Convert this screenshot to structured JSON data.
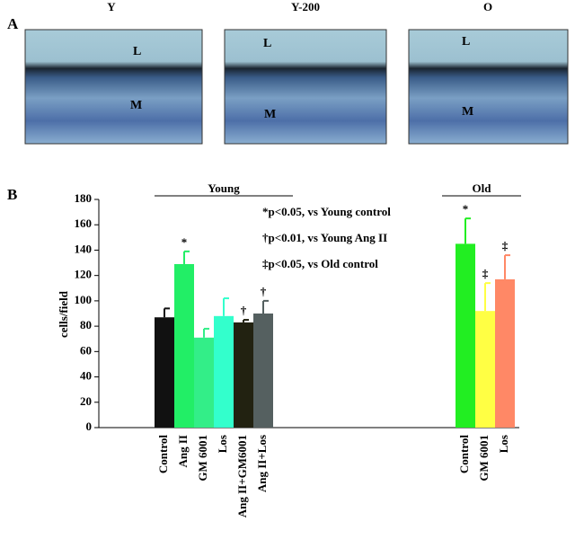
{
  "panel_a": {
    "label": "A",
    "images": [
      {
        "title": "Y",
        "lumen": "L",
        "media": "M"
      },
      {
        "title": "Y-200",
        "lumen": "L",
        "media": "M"
      },
      {
        "title": "O",
        "lumen": "L",
        "media": "M"
      }
    ]
  },
  "chart_data": {
    "type": "bar",
    "panel_label": "B",
    "y_label": "cells/field",
    "ylim": [
      0,
      180
    ],
    "yticks": [
      0,
      20,
      40,
      60,
      80,
      100,
      120,
      140,
      160,
      180
    ],
    "annotations": [
      "*p<0.05, vs Young control",
      "†p<0.01, vs Young Ang II",
      "‡p<0.05, vs Old control"
    ],
    "groups": [
      {
        "name": "Young",
        "bars": [
          {
            "category": "Control",
            "value": 87,
            "error": 7,
            "color": "#111111",
            "marker": null
          },
          {
            "category": "Ang II",
            "value": 129,
            "error": 10,
            "color": "#22ee66",
            "marker": "*"
          },
          {
            "category": "GM 6001",
            "value": 71,
            "error": 7,
            "color": "#33ee88",
            "marker": null
          },
          {
            "category": "Los",
            "value": 88,
            "error": 14,
            "color": "#33ffcc",
            "marker": null
          },
          {
            "category": "Ang II+GM6001",
            "value": 83,
            "error": 2,
            "color": "#222211",
            "marker": "†"
          },
          {
            "category": "Ang II+Los",
            "value": 90,
            "error": 10,
            "color": "#556060",
            "marker": "†"
          }
        ]
      },
      {
        "name": "Old",
        "bars": [
          {
            "category": "Control",
            "value": 145,
            "error": 20,
            "color": "#22ee22",
            "marker": "*"
          },
          {
            "category": "GM 6001",
            "value": 92,
            "error": 22,
            "color": "#ffff44",
            "marker": "‡"
          },
          {
            "category": "Los",
            "value": 117,
            "error": 19,
            "color": "#ff8866",
            "marker": "‡"
          }
        ]
      }
    ]
  }
}
